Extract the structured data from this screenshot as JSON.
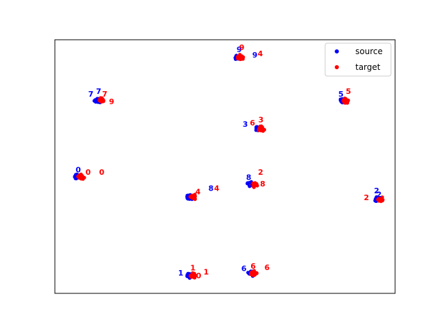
{
  "chart_data": {
    "type": "scatter",
    "title": "",
    "xlabel": "",
    "ylabel": "",
    "axes_visible": false,
    "grid": false,
    "legend_placement": "top-right",
    "colors": {
      "source": "#0000ff",
      "target": "#ff0000"
    },
    "legend": {
      "source": "source",
      "target": "target"
    },
    "clusters": [
      {
        "digit": "0",
        "x": 0.07,
        "y": 0.46
      },
      {
        "digit": "1",
        "x": 0.4,
        "y": 0.07
      },
      {
        "digit": "2",
        "x": 0.95,
        "y": 0.37
      },
      {
        "digit": "3",
        "x": 0.6,
        "y": 0.65
      },
      {
        "digit": "4",
        "x": 0.4,
        "y": 0.38
      },
      {
        "digit": "5",
        "x": 0.85,
        "y": 0.76
      },
      {
        "digit": "6",
        "x": 0.58,
        "y": 0.08
      },
      {
        "digit": "7",
        "x": 0.13,
        "y": 0.76
      },
      {
        "digit": "8",
        "x": 0.58,
        "y": 0.43
      },
      {
        "digit": "9",
        "x": 0.54,
        "y": 0.93
      }
    ],
    "labels": [
      {
        "t": "0",
        "c": "source",
        "x": 0.061,
        "y": 0.477
      },
      {
        "t": "0",
        "c": "target",
        "x": 0.09,
        "y": 0.467
      },
      {
        "t": "0",
        "c": "target",
        "x": 0.13,
        "y": 0.467
      },
      {
        "t": "7",
        "c": "source",
        "x": 0.098,
        "y": 0.776
      },
      {
        "t": "7",
        "c": "source",
        "x": 0.121,
        "y": 0.787
      },
      {
        "t": "7",
        "c": "target",
        "x": 0.139,
        "y": 0.776
      },
      {
        "t": "9",
        "c": "target",
        "x": 0.159,
        "y": 0.746
      },
      {
        "t": "9",
        "c": "source",
        "x": 0.534,
        "y": 0.952
      },
      {
        "t": "9",
        "c": "source",
        "x": 0.58,
        "y": 0.93
      },
      {
        "t": "4",
        "c": "target",
        "x": 0.596,
        "y": 0.935
      },
      {
        "t": "9",
        "c": "target",
        "x": 0.542,
        "y": 0.959
      },
      {
        "t": "5",
        "c": "source",
        "x": 0.833,
        "y": 0.776
      },
      {
        "t": "5",
        "c": "target",
        "x": 0.855,
        "y": 0.787
      },
      {
        "t": "3",
        "c": "source",
        "x": 0.552,
        "y": 0.657
      },
      {
        "t": "3",
        "c": "target",
        "x": 0.598,
        "y": 0.675
      },
      {
        "t": "6",
        "c": "target",
        "x": 0.573,
        "y": 0.662
      },
      {
        "t": "8",
        "c": "source",
        "x": 0.562,
        "y": 0.447
      },
      {
        "t": "8",
        "c": "source",
        "x": 0.565,
        "y": 0.421
      },
      {
        "t": "2",
        "c": "target",
        "x": 0.597,
        "y": 0.467
      },
      {
        "t": "8",
        "c": "target",
        "x": 0.603,
        "y": 0.421
      },
      {
        "t": "8",
        "c": "source",
        "x": 0.451,
        "y": 0.404
      },
      {
        "t": "4",
        "c": "target",
        "x": 0.468,
        "y": 0.404
      },
      {
        "t": "4",
        "c": "target",
        "x": 0.413,
        "y": 0.39
      },
      {
        "t": "2",
        "c": "target",
        "x": 0.908,
        "y": 0.368
      },
      {
        "t": "2",
        "c": "source",
        "x": 0.945,
        "y": 0.38
      },
      {
        "t": "2",
        "c": "source",
        "x": 0.938,
        "y": 0.395
      },
      {
        "t": "1",
        "c": "source",
        "x": 0.362,
        "y": 0.07
      },
      {
        "t": "1",
        "c": "target",
        "x": 0.398,
        "y": 0.09
      },
      {
        "t": "1",
        "c": "target",
        "x": 0.437,
        "y": 0.075
      },
      {
        "t": "0",
        "c": "target",
        "x": 0.415,
        "y": 0.06
      },
      {
        "t": "6",
        "c": "source",
        "x": 0.548,
        "y": 0.088
      },
      {
        "t": "6",
        "c": "target",
        "x": 0.575,
        "y": 0.097
      },
      {
        "t": "6",
        "c": "target",
        "x": 0.616,
        "y": 0.092
      }
    ]
  }
}
